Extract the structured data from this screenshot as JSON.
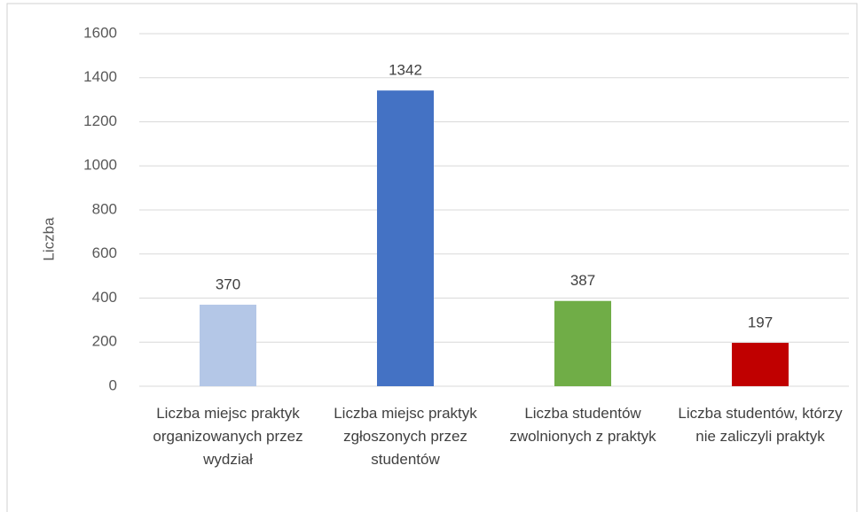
{
  "chart_data": {
    "type": "bar",
    "ylabel": "Liczba",
    "categories": [
      "Liczba miejsc praktyk organizowanych przez wydział",
      "Liczba miejsc praktyk zgłoszonych przez studentów",
      "Liczba studentów zwolnionych z praktyk",
      "Liczba studentów, którzy nie zaliczyli praktyk"
    ],
    "values": [
      370,
      1342,
      387,
      197
    ],
    "colors": [
      "#b4c7e7",
      "#4472c4",
      "#70ad47",
      "#c00000"
    ],
    "ylim": [
      0,
      1600
    ],
    "yticks": [
      0,
      200,
      400,
      600,
      800,
      1000,
      1200,
      1400,
      1600
    ],
    "grid": true
  }
}
